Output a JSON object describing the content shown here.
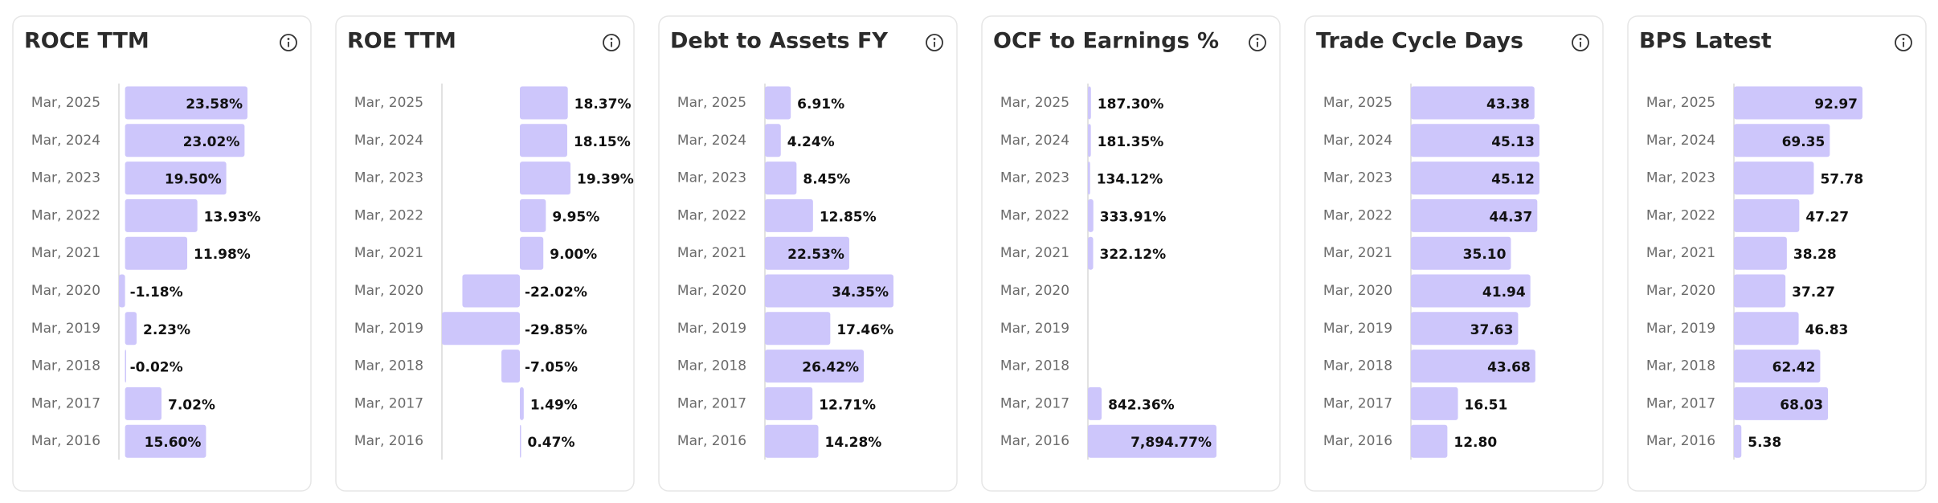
{
  "chart_data": [
    {
      "type": "bar",
      "orientation": "horizontal",
      "title": "ROCE TTM",
      "color": "#cdc6fb",
      "categories": [
        "Mar, 2025",
        "Mar, 2024",
        "Mar, 2023",
        "Mar, 2022",
        "Mar, 2021",
        "Mar, 2020",
        "Mar, 2019",
        "Mar, 2018",
        "Mar, 2017",
        "Mar, 2016"
      ],
      "values": [
        23.58,
        23.02,
        19.5,
        13.93,
        11.98,
        -1.18,
        2.23,
        -0.02,
        7.02,
        15.6
      ],
      "value_labels": [
        "23.58%",
        "23.02%",
        "19.50%",
        "13.93%",
        "11.98%",
        "-1.18%",
        "2.23%",
        "-0.02%",
        "7.02%",
        "15.60%"
      ]
    },
    {
      "type": "bar",
      "orientation": "horizontal",
      "title": "ROE TTM",
      "color": "#cdc6fb",
      "categories": [
        "Mar, 2025",
        "Mar, 2024",
        "Mar, 2023",
        "Mar, 2022",
        "Mar, 2021",
        "Mar, 2020",
        "Mar, 2019",
        "Mar, 2018",
        "Mar, 2017",
        "Mar, 2016"
      ],
      "values": [
        18.37,
        18.15,
        19.39,
        9.95,
        9.0,
        -22.02,
        -29.85,
        -7.05,
        1.49,
        0.47
      ],
      "value_labels": [
        "18.37%",
        "18.15%",
        "19.39%",
        "9.95%",
        "9.00%",
        "-22.02%",
        "-29.85%",
        "-7.05%",
        "1.49%",
        "0.47%"
      ]
    },
    {
      "type": "bar",
      "orientation": "horizontal",
      "title": "Debt to Assets FY",
      "color": "#cdc6fb",
      "categories": [
        "Mar, 2025",
        "Mar, 2024",
        "Mar, 2023",
        "Mar, 2022",
        "Mar, 2021",
        "Mar, 2020",
        "Mar, 2019",
        "Mar, 2018",
        "Mar, 2017",
        "Mar, 2016"
      ],
      "values": [
        6.91,
        4.24,
        8.45,
        12.85,
        22.53,
        34.35,
        17.46,
        26.42,
        12.71,
        14.28
      ],
      "value_labels": [
        "6.91%",
        "4.24%",
        "8.45%",
        "12.85%",
        "22.53%",
        "34.35%",
        "17.46%",
        "26.42%",
        "12.71%",
        "14.28%"
      ]
    },
    {
      "type": "bar",
      "orientation": "horizontal",
      "title": "OCF to Earnings %",
      "color": "#cdc6fb",
      "categories": [
        "Mar, 2025",
        "Mar, 2024",
        "Mar, 2023",
        "Mar, 2022",
        "Mar, 2021",
        "Mar, 2020",
        "Mar, 2019",
        "Mar, 2018",
        "Mar, 2017",
        "Mar, 2016"
      ],
      "values": [
        187.3,
        181.35,
        134.12,
        333.91,
        322.12,
        null,
        null,
        null,
        842.36,
        7894.77
      ],
      "value_labels": [
        "187.30%",
        "181.35%",
        "134.12%",
        "333.91%",
        "322.12%",
        null,
        null,
        null,
        "842.36%",
        "7,894.77%"
      ]
    },
    {
      "type": "bar",
      "orientation": "horizontal",
      "title": "Trade Cycle Days",
      "color": "#cdc6fb",
      "categories": [
        "Mar, 2025",
        "Mar, 2024",
        "Mar, 2023",
        "Mar, 2022",
        "Mar, 2021",
        "Mar, 2020",
        "Mar, 2019",
        "Mar, 2018",
        "Mar, 2017",
        "Mar, 2016"
      ],
      "values": [
        43.38,
        45.13,
        45.12,
        44.37,
        35.1,
        41.94,
        37.63,
        43.68,
        16.51,
        12.8
      ],
      "value_labels": [
        "43.38",
        "45.13",
        "45.12",
        "44.37",
        "35.10",
        "41.94",
        "37.63",
        "43.68",
        "16.51",
        "12.80"
      ]
    },
    {
      "type": "bar",
      "orientation": "horizontal",
      "title": "BPS Latest",
      "color": "#cdc6fb",
      "categories": [
        "Mar, 2025",
        "Mar, 2024",
        "Mar, 2023",
        "Mar, 2022",
        "Mar, 2021",
        "Mar, 2020",
        "Mar, 2019",
        "Mar, 2018",
        "Mar, 2017",
        "Mar, 2016"
      ],
      "values": [
        92.97,
        69.35,
        57.78,
        47.27,
        38.28,
        37.27,
        46.83,
        62.42,
        68.03,
        5.38
      ],
      "value_labels": [
        "92.97",
        "69.35",
        "57.78",
        "47.27",
        "38.28",
        "37.27",
        "46.83",
        "62.42",
        "68.03",
        "5.38"
      ]
    }
  ]
}
